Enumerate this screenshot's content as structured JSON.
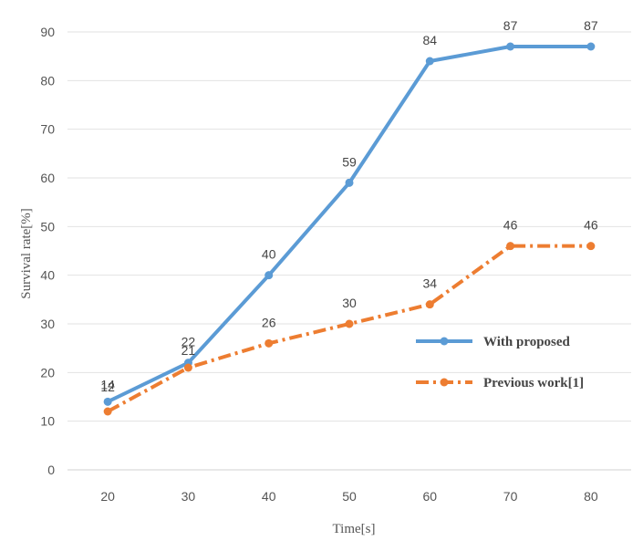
{
  "chart_data": {
    "type": "line",
    "title": "",
    "xlabel": "Time[s]",
    "ylabel": "Survival rate[%]",
    "x": [
      20,
      30,
      40,
      50,
      60,
      70,
      80
    ],
    "ylim": [
      0,
      90
    ],
    "yticks": [
      0,
      10,
      20,
      30,
      40,
      50,
      60,
      70,
      80,
      90
    ],
    "grid": true,
    "legend_position": "right",
    "series": [
      {
        "name": "With proposed",
        "values": [
          14,
          22,
          40,
          59,
          84,
          87,
          87
        ],
        "color": "#5b9bd5",
        "style": "solid"
      },
      {
        "name": "Previous work[1]",
        "values": [
          12,
          21,
          26,
          30,
          34,
          46,
          46
        ],
        "color": "#ed7d31",
        "style": "dash-dot"
      }
    ]
  }
}
